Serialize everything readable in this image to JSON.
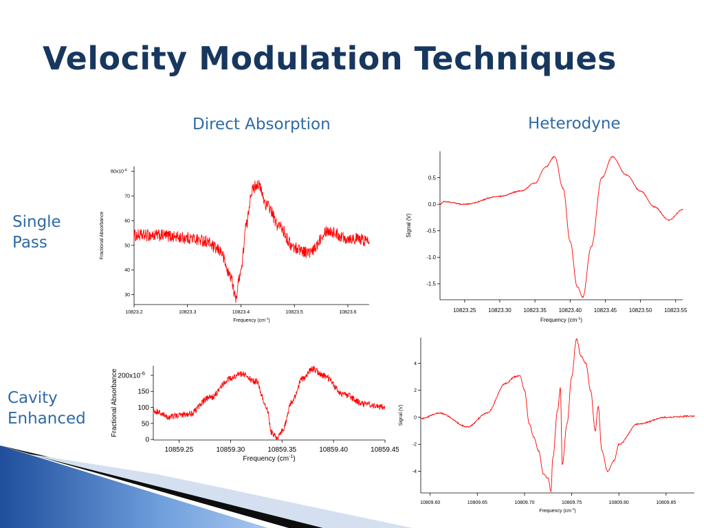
{
  "title": "Velocity Modulation Techniques",
  "columns": [
    "Direct Absorption",
    "Heterodyne"
  ],
  "rows": [
    [
      "Single",
      "Pass"
    ],
    [
      "Cavity",
      "Enhanced"
    ]
  ],
  "colors": {
    "title": "#17375e",
    "headings": "#2e6aa6",
    "trace": "#ff0000"
  },
  "chart_data": [
    {
      "type": "line",
      "title": "",
      "xlabel": "Frequency (cm",
      "xlabel_sup": "-1",
      "xlabel_close": ")",
      "ylabel": "Fractional Absorbance",
      "xlim": [
        10823.2,
        10823.64
      ],
      "ylim": [
        26,
        82
      ],
      "xticks": [
        10823.2,
        10823.3,
        10823.4,
        10823.5,
        10823.6
      ],
      "xtick_labels": [
        "10823.2",
        "10823.3",
        "10823.4",
        "10823.5",
        "10823.6"
      ],
      "yticks": [
        30,
        40,
        50,
        60,
        70,
        80
      ],
      "ytick_labels": [
        "30",
        "40",
        "50",
        "60",
        "70",
        "80x10"
      ],
      "ytick_top_sup": "-6",
      "noise": 2.5,
      "series": [
        {
          "x": [
            10823.2,
            10823.25,
            10823.3,
            10823.33,
            10823.36,
            10823.38,
            10823.39,
            10823.4,
            10823.41,
            10823.42,
            10823.43,
            10823.45,
            10823.47,
            10823.5,
            10823.53,
            10823.56,
            10823.6,
            10823.64
          ],
          "y": [
            54,
            54,
            53,
            52,
            48,
            38,
            29,
            40,
            58,
            72,
            75,
            66,
            58,
            49,
            47,
            56,
            53,
            52
          ]
        }
      ]
    },
    {
      "type": "line",
      "title": "",
      "xlabel": "Frequency (cm",
      "xlabel_sup": "-1",
      "xlabel_close": ")",
      "ylabel": "Signal (V)",
      "xlim": [
        10823.215,
        10823.56
      ],
      "ylim": [
        -1.8,
        1.0
      ],
      "xticks": [
        10823.25,
        10823.3,
        10823.35,
        10823.4,
        10823.45,
        10823.5,
        10823.55
      ],
      "xtick_labels": [
        "10823.25",
        "10823.30",
        "10823.35",
        "10823.40",
        "10823.45",
        "10823.50",
        "10823.55"
      ],
      "yticks": [
        -1.5,
        -1.0,
        -0.5,
        0.0,
        0.5
      ],
      "ytick_labels": [
        "-1.5",
        "-1.0",
        "-0.5",
        "0.0",
        "0.5"
      ],
      "noise": 0.01,
      "series": [
        {
          "x": [
            10823.215,
            10823.22,
            10823.25,
            10823.3,
            10823.33,
            10823.35,
            10823.365,
            10823.378,
            10823.39,
            10823.4,
            10823.41,
            10823.418,
            10823.43,
            10823.445,
            10823.46,
            10823.48,
            10823.5,
            10823.52,
            10823.54,
            10823.56
          ],
          "y": [
            0.0,
            0.05,
            0.0,
            0.15,
            0.25,
            0.4,
            0.7,
            0.9,
            0.3,
            -0.7,
            -1.55,
            -1.75,
            -0.8,
            0.5,
            0.9,
            0.55,
            0.25,
            -0.05,
            -0.3,
            -0.1
          ]
        }
      ]
    },
    {
      "type": "line",
      "title": "",
      "xlabel": "Frequency (cm",
      "xlabel_sup": "-1",
      "xlabel_close": ")",
      "ylabel": "Fractional Absorbance",
      "xlim": [
        10859.225,
        10859.45
      ],
      "ylim": [
        -2,
        230
      ],
      "xticks": [
        10859.25,
        10859.3,
        10859.35,
        10859.4,
        10859.45
      ],
      "xtick_labels": [
        "10859.25",
        "10859.30",
        "10859.35",
        "10859.40",
        "10859.45"
      ],
      "yticks": [
        0,
        50,
        100,
        150,
        200
      ],
      "ytick_labels": [
        "0",
        "50",
        "100",
        "150",
        "200x10"
      ],
      "ytick_top_sup": "-6",
      "noise": 10,
      "series": [
        {
          "x": [
            10859.225,
            10859.24,
            10859.26,
            10859.28,
            10859.3,
            10859.31,
            10859.325,
            10859.335,
            10859.34,
            10859.345,
            10859.35,
            10859.36,
            10859.37,
            10859.38,
            10859.39,
            10859.41,
            10859.43,
            10859.45
          ],
          "y": [
            90,
            70,
            80,
            130,
            190,
            205,
            180,
            100,
            20,
            5,
            25,
            120,
            190,
            220,
            200,
            140,
            110,
            100
          ]
        }
      ]
    },
    {
      "type": "line",
      "title": "",
      "xlabel": "Frequency (cm",
      "xlabel_sup": "-1",
      "xlabel_close": ")",
      "ylabel": "Signal (V)",
      "xlim": [
        10809.59,
        10809.88
      ],
      "ylim": [
        -5.6,
        5.9
      ],
      "xticks": [
        10809.6,
        10809.65,
        10809.7,
        10809.75,
        10809.8,
        10809.85
      ],
      "xtick_labels": [
        "10809.60",
        "10809.65",
        "10809.70",
        "10809.75",
        "10809.80",
        "10809.85"
      ],
      "yticks": [
        -4,
        -2,
        0,
        2,
        4
      ],
      "ytick_labels": [
        "-4",
        "-2",
        "0",
        "2",
        "4"
      ],
      "noise": 0.05,
      "series": [
        {
          "x": [
            10809.59,
            10809.61,
            10809.64,
            10809.66,
            10809.68,
            10809.69,
            10809.695,
            10809.7,
            10809.705,
            10809.71,
            10809.715,
            10809.72,
            10809.725,
            10809.728,
            10809.73,
            10809.735,
            10809.738,
            10809.74,
            10809.745,
            10809.75,
            10809.755,
            10809.76,
            10809.765,
            10809.77,
            10809.775,
            10809.778,
            10809.782,
            10809.788,
            10809.795,
            10809.8,
            10809.82,
            10809.85,
            10809.88
          ],
          "y": [
            -0.1,
            0.3,
            -0.7,
            0.3,
            2.5,
            3.0,
            3.1,
            2.0,
            -0.5,
            -1.5,
            -2.5,
            -4.2,
            -4.5,
            -5.5,
            -3.0,
            0.5,
            2.2,
            -3.5,
            -0.5,
            3.0,
            5.8,
            4.5,
            4.0,
            2.0,
            -1.0,
            0.8,
            -2.5,
            -4.0,
            -3.2,
            -2.0,
            -0.5,
            0.0,
            0.1
          ]
        }
      ]
    }
  ]
}
